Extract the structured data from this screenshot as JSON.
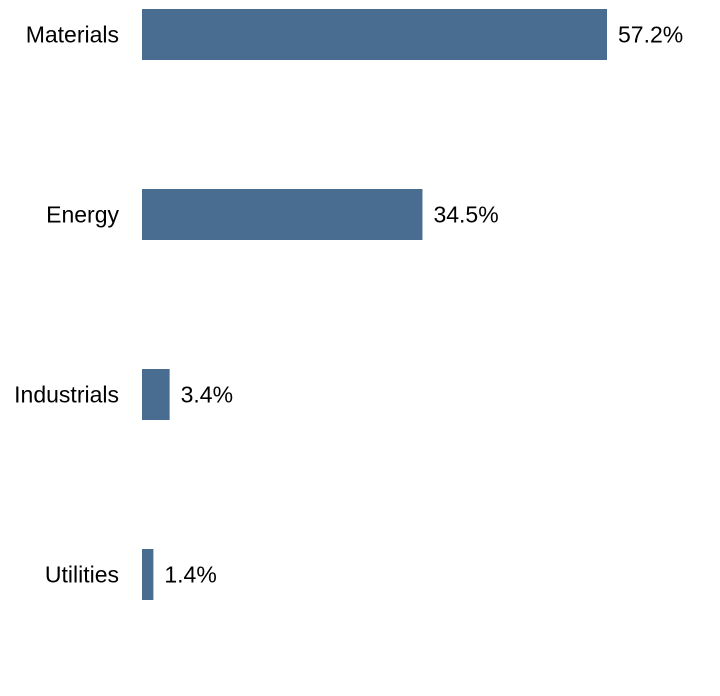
{
  "chart_data": {
    "type": "bar",
    "orientation": "horizontal",
    "categories": [
      "Materials",
      "Energy",
      "Industrials",
      "Utilities"
    ],
    "values": [
      57.2,
      34.5,
      3.4,
      1.4
    ],
    "value_labels": [
      "57.2%",
      "34.5%",
      "3.4%",
      "1.4%"
    ],
    "unit": "%",
    "title": "",
    "xlabel": "",
    "ylabel": "",
    "xlim": [
      0,
      57.2
    ],
    "grid": false,
    "legend": "none",
    "bar_color": "#486d90"
  }
}
